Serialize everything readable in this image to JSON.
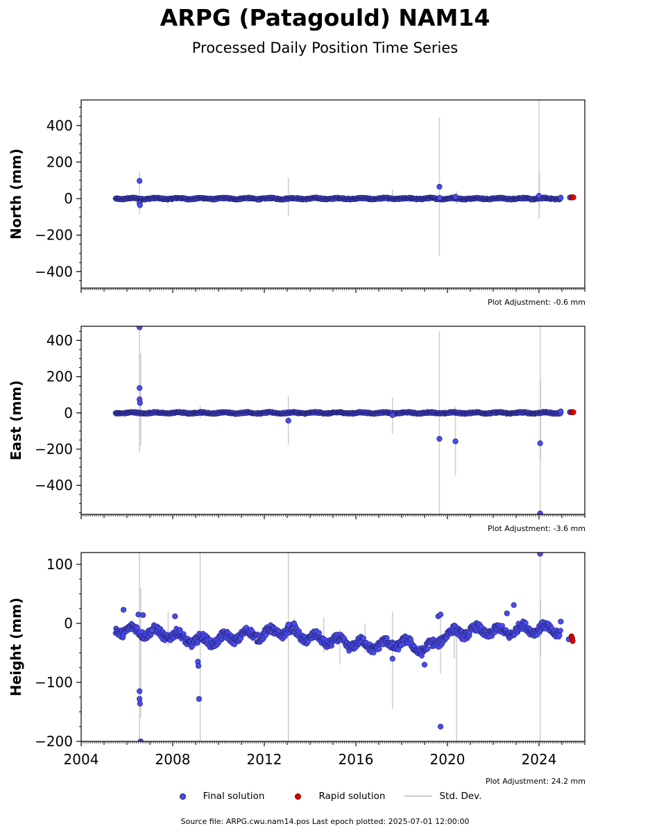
{
  "title": "ARPG (Patagould) NAM14",
  "subtitle": "Processed Daily Position Time Series",
  "colors": {
    "final": "#4b4bf0",
    "final_edge": "#1a1a50",
    "rapid": "#e00000",
    "stddev": "#cccccc"
  },
  "legend": {
    "final": "Final solution",
    "rapid": "Rapid solution",
    "stddev": "Std. Dev."
  },
  "source_line": "Source file: ARPG.cwu.nam14.pos  Last epoch plotted: 2025-07-01 12:00:00",
  "chart_data": [
    {
      "type": "scatter",
      "ylabel": "North (mm)",
      "xlim": [
        2004.0,
        2026.0
      ],
      "ylim": [
        -490,
        540
      ],
      "yticks": [
        400,
        200,
        0,
        -200,
        -400
      ],
      "yticklabels": [
        "400",
        "200",
        "0",
        "−200",
        "−400"
      ],
      "xticks": [],
      "xticklabels": [],
      "adjustment": "Plot Adjustment: -0.6 mm",
      "series": [
        {
          "name": "Final solution",
          "kind": "final",
          "band": {
            "start": 2005.5,
            "end": 2024.95,
            "center": 0,
            "amp": 3,
            "spread": 4,
            "period": 1.0
          },
          "points": [
            [
              2006.55,
              97
            ],
            [
              2006.55,
              -26
            ],
            [
              2006.57,
              -36
            ],
            [
              2019.65,
              65
            ],
            [
              2019.66,
              4
            ],
            [
              2020.35,
              10
            ],
            [
              2024.0,
              15
            ],
            [
              2024.95,
              5
            ],
            [
              2025.35,
              6
            ]
          ]
        },
        {
          "name": "Rapid solution",
          "kind": "rapid",
          "points": [
            [
              2025.42,
              7
            ],
            [
              2025.47,
              6
            ],
            [
              2025.5,
              7
            ]
          ]
        },
        {
          "name": "Std. Dev.",
          "kind": "stddev",
          "bars": [
            [
              2006.55,
              -85,
              150
            ],
            [
              2013.05,
              -95,
              115
            ],
            [
              2017.6,
              -15,
              50
            ],
            [
              2019.65,
              -315,
              445
            ],
            [
              2020.4,
              -30,
              40
            ],
            [
              2024.0,
              -110,
              540
            ],
            [
              2024.02,
              -60,
              145
            ]
          ]
        }
      ]
    },
    {
      "type": "scatter",
      "ylabel": "East (mm)",
      "xlim": [
        2004.0,
        2026.0
      ],
      "ylim": [
        -560,
        478
      ],
      "yticks": [
        400,
        200,
        0,
        -200,
        -400
      ],
      "yticklabels": [
        "400",
        "200",
        "0",
        "−200",
        "−400"
      ],
      "xticks": [],
      "xticklabels": [],
      "adjustment": "Plot Adjustment: -3.6 mm",
      "series": [
        {
          "name": "Final solution",
          "kind": "final",
          "band": {
            "start": 2005.5,
            "end": 2024.95,
            "center": 0,
            "amp": 3,
            "spread": 4,
            "period": 1.0
          },
          "points": [
            [
              2006.55,
              472
            ],
            [
              2006.55,
              137
            ],
            [
              2006.55,
              75
            ],
            [
              2006.57,
              55
            ],
            [
              2013.05,
              -43
            ],
            [
              2017.6,
              -12
            ],
            [
              2019.65,
              -143
            ],
            [
              2020.35,
              -157
            ],
            [
              2024.05,
              -168
            ],
            [
              2024.05,
              -555
            ],
            [
              2024.95,
              8
            ],
            [
              2025.35,
              4
            ]
          ]
        },
        {
          "name": "Rapid solution",
          "kind": "rapid",
          "points": [
            [
              2025.42,
              4
            ],
            [
              2025.47,
              3
            ],
            [
              2025.5,
              4
            ]
          ]
        },
        {
          "name": "Std. Dev.",
          "kind": "stddev",
          "bars": [
            [
              2006.55,
              -220,
              478
            ],
            [
              2006.6,
              -180,
              330
            ],
            [
              2009.2,
              -30,
              40
            ],
            [
              2013.05,
              -175,
              95
            ],
            [
              2017.6,
              -115,
              85
            ],
            [
              2019.65,
              -560,
              450
            ],
            [
              2020.35,
              -345,
              35
            ],
            [
              2024.05,
              -560,
              478
            ],
            [
              2024.07,
              -250,
              180
            ]
          ]
        }
      ]
    },
    {
      "type": "scatter",
      "ylabel": "Height (mm)",
      "xlim": [
        2004.0,
        2026.0
      ],
      "ylim": [
        -200,
        120
      ],
      "yticks": [
        100,
        0,
        -100,
        -200
      ],
      "yticklabels": [
        "100",
        "0",
        "−100",
        "−200"
      ],
      "xticks": [
        2004,
        2008,
        2012,
        2016,
        2020,
        2024
      ],
      "xticklabels": [
        "2004",
        "2008",
        "2012",
        "2016",
        "2020",
        "2024"
      ],
      "adjustment": "Plot Adjustment: 24.2 mm",
      "series": [
        {
          "name": "Final solution",
          "kind": "final",
          "trend": [
            [
              2005.5,
              -10
            ],
            [
              2007.0,
              -15
            ],
            [
              2008.0,
              -20
            ],
            [
              2009.0,
              -30
            ],
            [
              2010.0,
              -28
            ],
            [
              2011.0,
              -20
            ],
            [
              2012.0,
              -18
            ],
            [
              2013.0,
              -12
            ],
            [
              2014.0,
              -25
            ],
            [
              2015.0,
              -30
            ],
            [
              2016.0,
              -35
            ],
            [
              2017.0,
              -38
            ],
            [
              2018.0,
              -32
            ],
            [
              2019.0,
              -45
            ],
            [
              2019.5,
              -35
            ],
            [
              2019.8,
              -20
            ],
            [
              2020.5,
              -15
            ],
            [
              2021.5,
              -12
            ],
            [
              2022.5,
              -15
            ],
            [
              2023.5,
              -8
            ],
            [
              2024.95,
              -12
            ]
          ],
          "band": {
            "start": 2005.5,
            "end": 2024.95,
            "amp": 7,
            "spread": 7,
            "period": 1.0
          },
          "points": [
            [
              2005.85,
              23
            ],
            [
              2006.5,
              15
            ],
            [
              2006.7,
              14
            ],
            [
              2007.1,
              -12
            ],
            [
              2008.1,
              12
            ],
            [
              2009.1,
              -65
            ],
            [
              2009.12,
              -72
            ],
            [
              2009.15,
              -128
            ],
            [
              2013.05,
              -2
            ],
            [
              2013.3,
              0
            ],
            [
              2017.6,
              -60
            ],
            [
              2019.0,
              -70
            ],
            [
              2019.6,
              12
            ],
            [
              2019.7,
              15
            ],
            [
              2019.7,
              -175
            ],
            [
              2006.55,
              -115
            ],
            [
              2006.55,
              -128
            ],
            [
              2006.57,
              -136
            ],
            [
              2006.6,
              -200
            ],
            [
              2022.9,
              31
            ],
            [
              2022.6,
              17
            ],
            [
              2024.05,
              118
            ],
            [
              2024.95,
              3
            ],
            [
              2025.3,
              -27
            ]
          ]
        },
        {
          "name": "Rapid solution",
          "kind": "rapid",
          "points": [
            [
              2025.42,
              -22
            ],
            [
              2025.45,
              -25
            ],
            [
              2025.47,
              -30
            ]
          ]
        },
        {
          "name": "Std. Dev.",
          "kind": "stddev",
          "bars": [
            [
              2006.55,
              -200,
              120
            ],
            [
              2006.6,
              -160,
              60
            ],
            [
              2007.8,
              -40,
              20
            ],
            [
              2009.2,
              -200,
              120
            ],
            [
              2013.05,
              -200,
              120
            ],
            [
              2013.3,
              -20,
              10
            ],
            [
              2014.6,
              -50,
              10
            ],
            [
              2015.3,
              -70,
              -10
            ],
            [
              2016.4,
              -50,
              0
            ],
            [
              2017.6,
              -145,
              20
            ],
            [
              2019.7,
              -85,
              20
            ],
            [
              2020.3,
              -60,
              0
            ],
            [
              2020.4,
              -200,
              0
            ],
            [
              2024.05,
              -200,
              120
            ],
            [
              2024.07,
              -55,
              40
            ]
          ]
        }
      ]
    }
  ]
}
